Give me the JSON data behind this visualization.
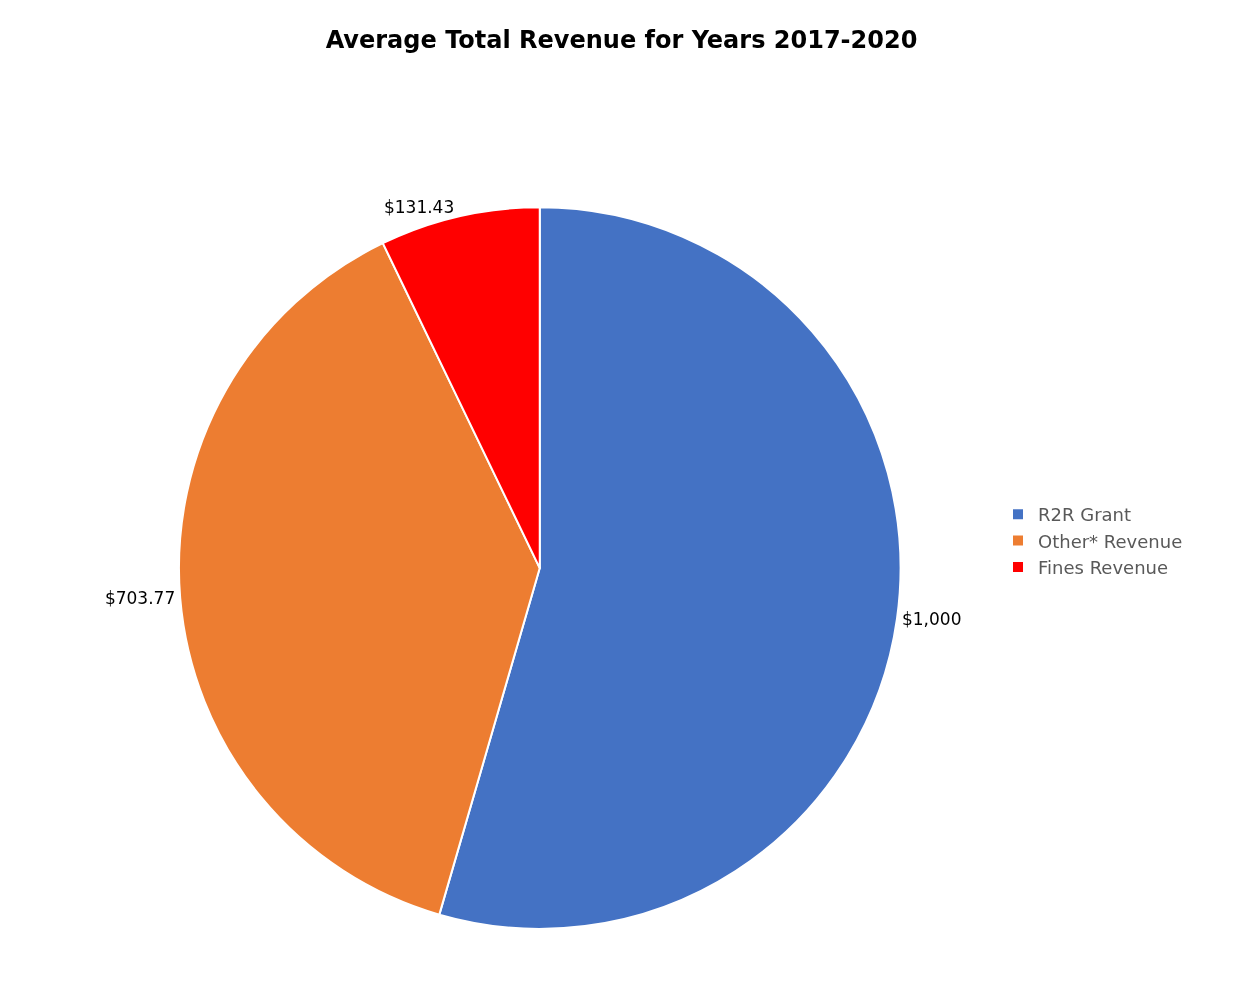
{
  "chart_data": {
    "type": "pie",
    "title": "Average Total Revenue for Years 2017-2020",
    "categories": [
      "R2R Grant",
      "Other* Revenue",
      "Fines Revenue"
    ],
    "values": [
      1000,
      703.77,
      131.43
    ],
    "value_labels": [
      "$1,000",
      "$703.77",
      "$131.43"
    ],
    "colors": [
      "#4472c4",
      "#ed7d31",
      "#ff0000"
    ],
    "legend": "right"
  }
}
